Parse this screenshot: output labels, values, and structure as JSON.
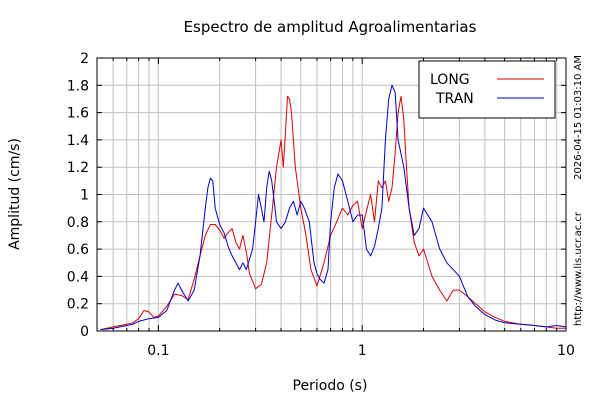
{
  "chart_data": {
    "type": "line",
    "title": "Espectro de amplitud Agroalimentarias",
    "xlabel": "Periodo (s)",
    "ylabel": "Amplitud (cm/s)",
    "x_scale": "log",
    "xlim": [
      0.05,
      10
    ],
    "ylim": [
      0,
      2
    ],
    "grid": true,
    "legend_position": "top-right",
    "x_ticks": [
      {
        "value": 0.1,
        "label": "0.1"
      },
      {
        "value": 1,
        "label": "1"
      },
      {
        "value": 10,
        "label": "10"
      }
    ],
    "y_ticks": [
      {
        "value": 0,
        "label": "0"
      },
      {
        "value": 0.2,
        "label": "0.2"
      },
      {
        "value": 0.4,
        "label": "0.4"
      },
      {
        "value": 0.6,
        "label": "0.6"
      },
      {
        "value": 0.8,
        "label": "0.8"
      },
      {
        "value": 1,
        "label": "1"
      },
      {
        "value": 1.2,
        "label": "1.2"
      },
      {
        "value": 1.4,
        "label": "1.4"
      },
      {
        "value": 1.6,
        "label": "1.6"
      },
      {
        "value": 1.8,
        "label": "1.8"
      },
      {
        "value": 2,
        "label": "2"
      }
    ],
    "series": [
      {
        "name": "LONG",
        "color": "#dd0000",
        "points": [
          [
            0.052,
            0.01
          ],
          [
            0.06,
            0.03
          ],
          [
            0.07,
            0.05
          ],
          [
            0.075,
            0.06
          ],
          [
            0.08,
            0.09
          ],
          [
            0.085,
            0.15
          ],
          [
            0.09,
            0.14
          ],
          [
            0.095,
            0.1
          ],
          [
            0.1,
            0.11
          ],
          [
            0.11,
            0.18
          ],
          [
            0.12,
            0.27
          ],
          [
            0.13,
            0.26
          ],
          [
            0.14,
            0.23
          ],
          [
            0.15,
            0.38
          ],
          [
            0.16,
            0.55
          ],
          [
            0.17,
            0.7
          ],
          [
            0.18,
            0.78
          ],
          [
            0.19,
            0.78
          ],
          [
            0.2,
            0.74
          ],
          [
            0.21,
            0.68
          ],
          [
            0.22,
            0.72
          ],
          [
            0.23,
            0.75
          ],
          [
            0.24,
            0.65
          ],
          [
            0.25,
            0.6
          ],
          [
            0.26,
            0.7
          ],
          [
            0.27,
            0.58
          ],
          [
            0.28,
            0.42
          ],
          [
            0.3,
            0.31
          ],
          [
            0.32,
            0.34
          ],
          [
            0.34,
            0.5
          ],
          [
            0.36,
            0.85
          ],
          [
            0.38,
            1.2
          ],
          [
            0.39,
            1.3
          ],
          [
            0.4,
            1.4
          ],
          [
            0.41,
            1.2
          ],
          [
            0.42,
            1.45
          ],
          [
            0.43,
            1.72
          ],
          [
            0.44,
            1.7
          ],
          [
            0.45,
            1.6
          ],
          [
            0.47,
            1.2
          ],
          [
            0.5,
            0.9
          ],
          [
            0.53,
            0.7
          ],
          [
            0.56,
            0.45
          ],
          [
            0.6,
            0.33
          ],
          [
            0.65,
            0.5
          ],
          [
            0.7,
            0.7
          ],
          [
            0.75,
            0.8
          ],
          [
            0.8,
            0.9
          ],
          [
            0.85,
            0.85
          ],
          [
            0.9,
            0.92
          ],
          [
            0.95,
            0.95
          ],
          [
            1.0,
            0.75
          ],
          [
            1.05,
            0.88
          ],
          [
            1.1,
            1.0
          ],
          [
            1.15,
            0.8
          ],
          [
            1.2,
            1.1
          ],
          [
            1.25,
            1.05
          ],
          [
            1.3,
            1.1
          ],
          [
            1.35,
            0.95
          ],
          [
            1.4,
            1.05
          ],
          [
            1.45,
            1.3
          ],
          [
            1.5,
            1.6
          ],
          [
            1.55,
            1.72
          ],
          [
            1.6,
            1.55
          ],
          [
            1.65,
            1.2
          ],
          [
            1.7,
            0.9
          ],
          [
            1.8,
            0.65
          ],
          [
            1.9,
            0.55
          ],
          [
            2.0,
            0.6
          ],
          [
            2.2,
            0.4
          ],
          [
            2.4,
            0.3
          ],
          [
            2.6,
            0.22
          ],
          [
            2.8,
            0.3
          ],
          [
            3.0,
            0.3
          ],
          [
            3.3,
            0.25
          ],
          [
            3.6,
            0.2
          ],
          [
            4.0,
            0.14
          ],
          [
            4.5,
            0.1
          ],
          [
            5.0,
            0.07
          ],
          [
            6.0,
            0.05
          ],
          [
            7.0,
            0.04
          ],
          [
            8.0,
            0.03
          ],
          [
            9.0,
            0.02
          ],
          [
            10.0,
            0.02
          ]
        ]
      },
      {
        "name": "TRAN",
        "color": "#0000cc",
        "points": [
          [
            0.052,
            0.01
          ],
          [
            0.06,
            0.02
          ],
          [
            0.07,
            0.04
          ],
          [
            0.075,
            0.05
          ],
          [
            0.08,
            0.07
          ],
          [
            0.09,
            0.09
          ],
          [
            0.1,
            0.1
          ],
          [
            0.11,
            0.15
          ],
          [
            0.12,
            0.3
          ],
          [
            0.125,
            0.35
          ],
          [
            0.13,
            0.3
          ],
          [
            0.14,
            0.22
          ],
          [
            0.15,
            0.3
          ],
          [
            0.16,
            0.55
          ],
          [
            0.17,
            0.9
          ],
          [
            0.175,
            1.05
          ],
          [
            0.18,
            1.12
          ],
          [
            0.185,
            1.1
          ],
          [
            0.19,
            0.9
          ],
          [
            0.2,
            0.78
          ],
          [
            0.21,
            0.72
          ],
          [
            0.22,
            0.62
          ],
          [
            0.23,
            0.55
          ],
          [
            0.24,
            0.5
          ],
          [
            0.25,
            0.45
          ],
          [
            0.26,
            0.5
          ],
          [
            0.27,
            0.45
          ],
          [
            0.29,
            0.6
          ],
          [
            0.3,
            0.8
          ],
          [
            0.31,
            1.0
          ],
          [
            0.32,
            0.9
          ],
          [
            0.33,
            0.8
          ],
          [
            0.34,
            1.05
          ],
          [
            0.35,
            1.17
          ],
          [
            0.36,
            1.1
          ],
          [
            0.37,
            0.95
          ],
          [
            0.38,
            0.8
          ],
          [
            0.4,
            0.75
          ],
          [
            0.42,
            0.8
          ],
          [
            0.44,
            0.9
          ],
          [
            0.46,
            0.95
          ],
          [
            0.48,
            0.85
          ],
          [
            0.5,
            0.95
          ],
          [
            0.52,
            0.9
          ],
          [
            0.55,
            0.8
          ],
          [
            0.58,
            0.5
          ],
          [
            0.6,
            0.42
          ],
          [
            0.62,
            0.38
          ],
          [
            0.65,
            0.35
          ],
          [
            0.68,
            0.45
          ],
          [
            0.7,
            0.8
          ],
          [
            0.73,
            1.05
          ],
          [
            0.76,
            1.15
          ],
          [
            0.8,
            1.1
          ],
          [
            0.85,
            0.95
          ],
          [
            0.9,
            0.8
          ],
          [
            0.95,
            0.85
          ],
          [
            1.0,
            0.85
          ],
          [
            1.05,
            0.6
          ],
          [
            1.1,
            0.55
          ],
          [
            1.15,
            0.62
          ],
          [
            1.2,
            0.75
          ],
          [
            1.25,
            0.9
          ],
          [
            1.3,
            1.4
          ],
          [
            1.35,
            1.7
          ],
          [
            1.4,
            1.8
          ],
          [
            1.45,
            1.75
          ],
          [
            1.5,
            1.4
          ],
          [
            1.6,
            1.2
          ],
          [
            1.7,
            0.9
          ],
          [
            1.8,
            0.7
          ],
          [
            1.9,
            0.75
          ],
          [
            2.0,
            0.9
          ],
          [
            2.2,
            0.8
          ],
          [
            2.4,
            0.6
          ],
          [
            2.6,
            0.5
          ],
          [
            2.8,
            0.45
          ],
          [
            3.0,
            0.4
          ],
          [
            3.3,
            0.25
          ],
          [
            3.6,
            0.18
          ],
          [
            4.0,
            0.12
          ],
          [
            4.5,
            0.08
          ],
          [
            5.0,
            0.06
          ],
          [
            6.0,
            0.05
          ],
          [
            7.0,
            0.04
          ],
          [
            8.0,
            0.03
          ],
          [
            9.0,
            0.04
          ],
          [
            10.0,
            0.03
          ]
        ]
      }
    ]
  },
  "side_labels": {
    "timestamp": "2026-04-15 01:03:10 AM",
    "url": "http://www.lis.ucr.ac.cr"
  }
}
